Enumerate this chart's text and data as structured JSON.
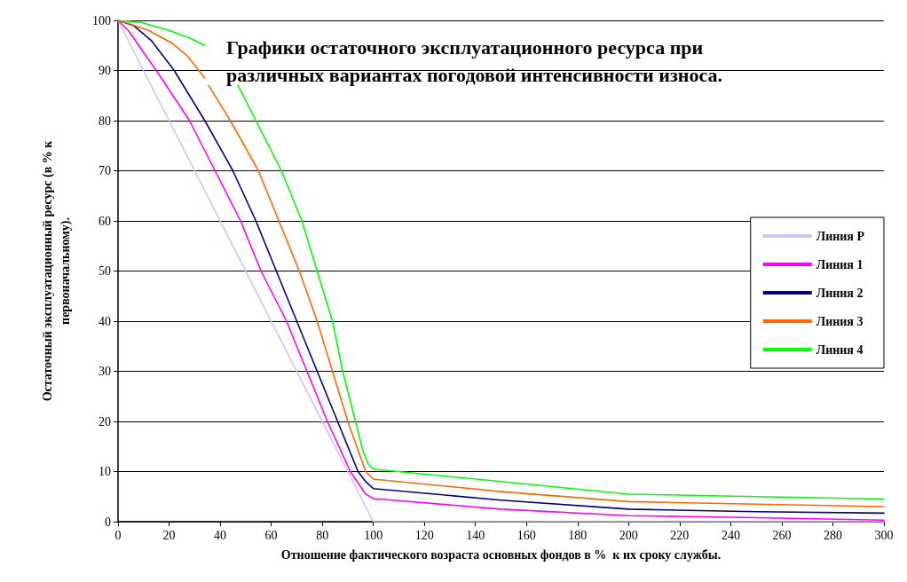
{
  "chart_data": {
    "type": "line",
    "title": "Графики остаточного эксплуатационного ресурса при\nразличных вариантах погодовой интенсивности износа.",
    "xlabel": "Отношение фактического возраста основных фондов в %  к их сроку службы.",
    "ylabel": "Остаточный эксплуатационный ресурс (в % к\nпервоначальному).",
    "xlim": [
      0,
      300
    ],
    "xticks": [
      0,
      20,
      40,
      60,
      80,
      100,
      120,
      140,
      160,
      180,
      200,
      220,
      240,
      260,
      280,
      300
    ],
    "ylim": [
      0,
      100
    ],
    "yticks": [
      0,
      10,
      20,
      30,
      40,
      50,
      60,
      70,
      80,
      90,
      100
    ],
    "grid": "y",
    "legend": "right",
    "marker": "none",
    "series": [
      {
        "name": "Линия P",
        "color": "#d2c4f0",
        "x": [
          0,
          100,
          300
        ],
        "values": [
          100,
          0,
          0
        ]
      },
      {
        "name": "Линия 1",
        "color": "#ff00ff",
        "x": [
          0,
          4,
          15,
          28,
          38,
          48,
          56,
          66,
          74,
          82,
          91,
          95,
          97,
          100,
          150,
          200,
          250,
          300
        ],
        "values": [
          100,
          98,
          90,
          80,
          70,
          60,
          50,
          40,
          30,
          20,
          10,
          7,
          5.5,
          4.6,
          2.5,
          1.2,
          0.8,
          0.3
        ]
      },
      {
        "name": "Линия 2",
        "color": "#000080",
        "x": [
          0,
          6,
          13,
          22,
          34,
          45,
          54,
          62,
          70,
          78,
          86,
          94,
          97,
          100,
          150,
          200,
          250,
          300
        ],
        "values": [
          100,
          99,
          96,
          90,
          80,
          70,
          60,
          50,
          40,
          30,
          20,
          10,
          8,
          6.6,
          4.3,
          2.5,
          2,
          1.7
        ]
      },
      {
        "name": "Линия 3",
        "color": "#ff6600",
        "x": [
          0,
          4,
          12,
          21,
          27,
          34,
          34.5,
          35.5,
          44,
          55,
          63,
          71,
          78,
          84,
          90,
          97,
          100,
          150,
          200,
          250,
          300
        ],
        "values": [
          100,
          99.4,
          98,
          95.5,
          93,
          88.5,
          null,
          87,
          80,
          70,
          60,
          50,
          40,
          30,
          20,
          10,
          8.5,
          6,
          4,
          3.5,
          3
        ]
      },
      {
        "name": "Линия 4",
        "color": "#00ff00",
        "x": [
          0,
          9,
          20,
          28,
          34,
          40,
          47,
          54,
          64,
          72,
          78,
          84,
          88,
          93,
          96,
          98,
          100,
          150,
          200,
          250,
          300
        ],
        "values": [
          100,
          99.6,
          98,
          96.5,
          95,
          null,
          87,
          80,
          70,
          60,
          50,
          40,
          30,
          20,
          14,
          11.5,
          10.5,
          8,
          5.5,
          5,
          4.5
        ]
      }
    ]
  }
}
